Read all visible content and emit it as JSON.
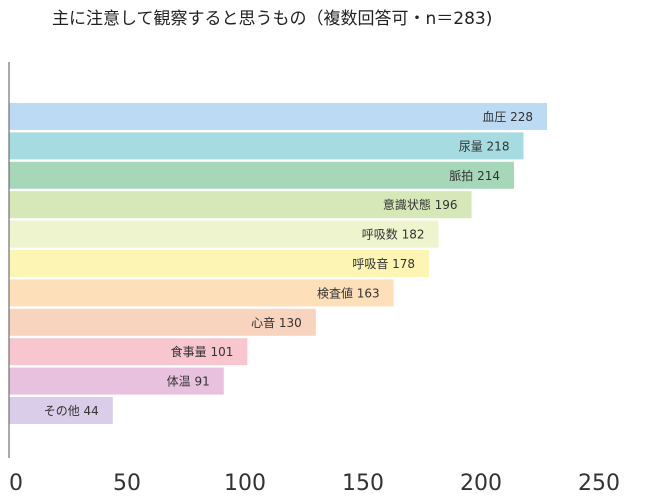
{
  "chart_data": {
    "type": "bar",
    "orientation": "horizontal",
    "title": "主に注意して観察すると思うもの（複数回答可・n＝283)",
    "xlabel": "",
    "ylabel": "",
    "xlim": [
      0,
      250
    ],
    "xticks": [
      "0",
      "50",
      "100",
      "150",
      "200",
      "250"
    ],
    "grid": false,
    "legend": "none",
    "categories": [
      "血圧",
      "尿量",
      "脈拍",
      "意識状態",
      "呼吸数",
      "呼吸音",
      "検査値",
      "心音",
      "食事量",
      "体温",
      "その他"
    ],
    "values": [
      228,
      218,
      214,
      196,
      182,
      178,
      163,
      130,
      101,
      91,
      44
    ],
    "colors": [
      "#bcdaf3",
      "#a6dbe1",
      "#a6d7b9",
      "#d6e8b8",
      "#eef4cd",
      "#fcf5b3",
      "#fde0b9",
      "#f8d3bd",
      "#f7c6cf",
      "#e8c1de",
      "#d9cde9"
    ]
  }
}
